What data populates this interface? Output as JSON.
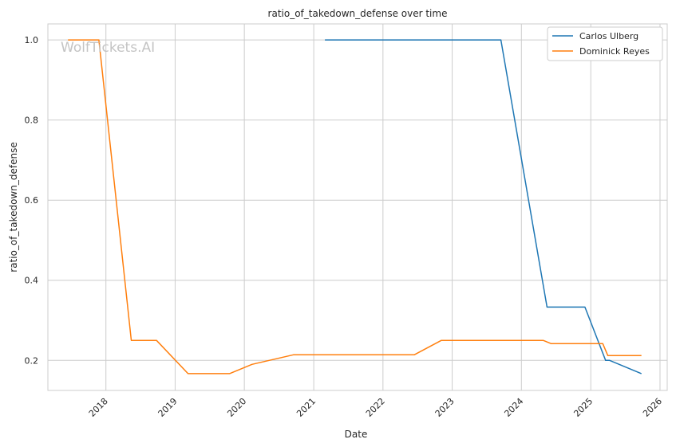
{
  "chart_data": {
    "type": "line",
    "title": "ratio_of_takedown_defense over time",
    "xlabel": "Date",
    "ylabel": "ratio_of_takedown_defense",
    "watermark": "WolfTickets.AI",
    "xlim": [
      "2017-03-01",
      "2026-02-08"
    ],
    "ylim": [
      0.125,
      1.04
    ],
    "x_ticks": [
      "2018",
      "2019",
      "2020",
      "2021",
      "2022",
      "2023",
      "2024",
      "2025",
      "2026"
    ],
    "y_ticks": [
      "0.2",
      "0.4",
      "0.6",
      "0.8",
      "1.0"
    ],
    "y_tick_values": [
      0.2,
      0.4,
      0.6,
      0.8,
      1.0
    ],
    "grid": true,
    "legend_position": "top-right",
    "series": [
      {
        "name": "Carlos Ulberg",
        "color": "#1f77b4",
        "points": [
          [
            "2021-03-01",
            1.0
          ],
          [
            "2023-09-15",
            1.0
          ],
          [
            "2024-05-15",
            0.333
          ],
          [
            "2024-12-01",
            0.333
          ],
          [
            "2025-03-20",
            0.2
          ],
          [
            "2025-04-10",
            0.2
          ],
          [
            "2025-09-25",
            0.167
          ]
        ]
      },
      {
        "name": "Dominick Reyes",
        "color": "#ff7f0e",
        "points": [
          [
            "2017-06-15",
            1.0
          ],
          [
            "2017-11-25",
            1.0
          ],
          [
            "2018-05-15",
            0.25
          ],
          [
            "2018-09-25",
            0.25
          ],
          [
            "2019-03-10",
            0.167
          ],
          [
            "2019-10-15",
            0.167
          ],
          [
            "2020-02-10",
            0.19
          ],
          [
            "2020-09-15",
            0.214
          ],
          [
            "2022-06-15",
            0.214
          ],
          [
            "2022-11-05",
            0.25
          ],
          [
            "2024-04-25",
            0.25
          ],
          [
            "2024-06-05",
            0.242
          ],
          [
            "2025-03-05",
            0.242
          ],
          [
            "2025-04-01",
            0.212
          ],
          [
            "2025-09-25",
            0.212
          ]
        ]
      }
    ]
  }
}
